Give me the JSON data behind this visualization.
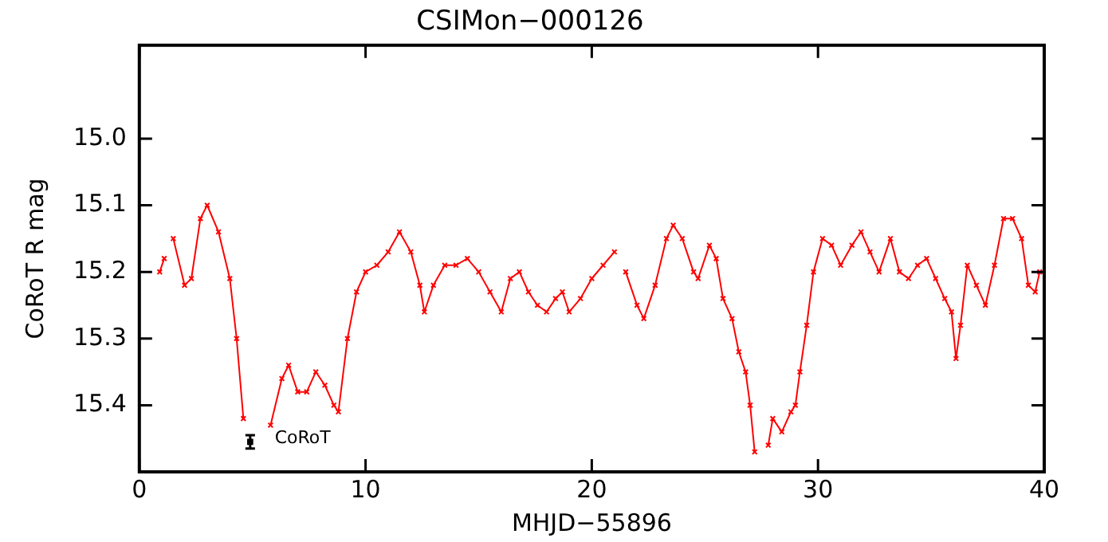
{
  "chart_data": {
    "type": "line",
    "title": "CSIMon−000126",
    "xlabel": "MHJD−55896",
    "ylabel": "CoRoT R mag",
    "xlim": [
      0,
      40
    ],
    "xticks": [
      0,
      10,
      20,
      30,
      40
    ],
    "ylim": [
      15.5,
      14.86
    ],
    "yticks": [
      {
        "value": 15.0,
        "label": "15.0"
      },
      {
        "value": 15.1,
        "label": "15.1"
      },
      {
        "value": 15.2,
        "label": "15.2"
      },
      {
        "value": 15.3,
        "label": "15.3"
      },
      {
        "value": 15.4,
        "label": "15.4"
      }
    ],
    "grid": false,
    "legend": false,
    "marker": "cross",
    "annotations": [
      {
        "text": "CoRoT",
        "x": 5,
        "y": 15.455
      }
    ],
    "series": [
      {
        "color": "#ff0000",
        "x": [
          0.9,
          1.1,
          1.3,
          1.5,
          2.0,
          2.3,
          2.7,
          3.0,
          3.5,
          4.0,
          4.3,
          4.6,
          4.9,
          5.1,
          5.4,
          5.8,
          6.3,
          6.6,
          7.0,
          7.4,
          7.8,
          8.2,
          8.6,
          8.8,
          9.2,
          9.6,
          10.0,
          10.5,
          11.0,
          11.5,
          12.0,
          12.4,
          12.6,
          13.0,
          13.5,
          14.0,
          14.5,
          15.0,
          15.5,
          16.0,
          16.4,
          16.8,
          17.2,
          17.6,
          18.0,
          18.4,
          18.7,
          19.0,
          19.5,
          20.0,
          20.5,
          21.0,
          21.2,
          21.5,
          22.0,
          22.3,
          22.8,
          23.3,
          23.6,
          24.0,
          24.5,
          24.7,
          25.2,
          25.5,
          25.8,
          26.2,
          26.5,
          26.8,
          27.0,
          27.2,
          27.5,
          27.8,
          28.0,
          28.4,
          28.8,
          29.0,
          29.2,
          29.5,
          29.8,
          30.2,
          30.6,
          31.0,
          31.5,
          31.9,
          32.3,
          32.7,
          33.2,
          33.6,
          34.0,
          34.4,
          34.8,
          35.2,
          35.6,
          35.9,
          36.1,
          36.3,
          36.6,
          37.0,
          37.4,
          37.8,
          38.2,
          38.6,
          39.0,
          39.3,
          39.6,
          39.8
        ],
        "values": [
          15.2,
          15.18,
          null,
          15.15,
          15.22,
          15.21,
          15.12,
          15.1,
          15.14,
          15.21,
          15.3,
          15.42,
          null,
          null,
          null,
          15.43,
          15.36,
          15.34,
          15.38,
          15.38,
          15.35,
          15.37,
          15.4,
          15.41,
          15.3,
          15.23,
          15.2,
          15.19,
          15.17,
          15.14,
          15.17,
          15.22,
          15.26,
          15.22,
          15.19,
          15.19,
          15.18,
          15.2,
          15.23,
          15.26,
          15.21,
          15.2,
          15.23,
          15.25,
          15.26,
          15.24,
          15.23,
          15.26,
          15.24,
          15.21,
          15.19,
          15.17,
          null,
          15.2,
          15.25,
          15.27,
          15.22,
          15.15,
          15.13,
          15.15,
          15.2,
          15.21,
          15.16,
          15.18,
          15.24,
          15.27,
          15.32,
          15.35,
          15.4,
          15.47,
          null,
          15.46,
          15.42,
          15.44,
          15.41,
          15.4,
          15.35,
          15.28,
          15.2,
          15.15,
          15.16,
          15.19,
          15.16,
          15.14,
          15.17,
          15.2,
          15.15,
          15.2,
          15.21,
          15.19,
          15.18,
          15.21,
          15.24,
          15.26,
          15.33,
          15.28,
          15.19,
          15.22,
          15.25,
          15.19,
          15.12,
          15.12,
          15.15,
          15.22,
          15.23,
          15.2
        ]
      },
      {
        "type": "scatter",
        "color": "#000000",
        "marker": "square",
        "x": [
          4.9
        ],
        "values": [
          15.455
        ],
        "errors": [
          0.01
        ]
      }
    ]
  }
}
